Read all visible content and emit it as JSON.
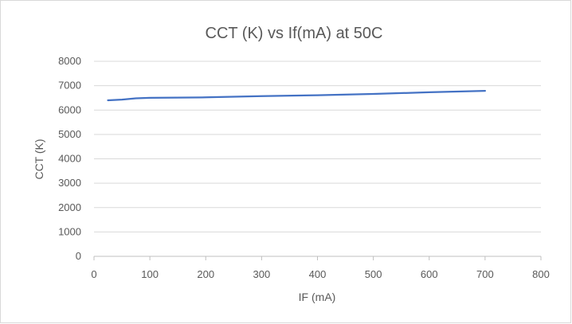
{
  "chart_data": {
    "type": "line",
    "title": "CCT (K) vs  If(mA) at 50C",
    "xlabel": "IF (mA)",
    "ylabel": "CCT (K)",
    "xlim": [
      0,
      800
    ],
    "ylim": [
      0,
      8000
    ],
    "xticks": [
      0,
      100,
      200,
      300,
      400,
      500,
      600,
      700,
      800
    ],
    "yticks": [
      0,
      1000,
      2000,
      3000,
      4000,
      5000,
      6000,
      7000,
      8000
    ],
    "grid": "horizontal",
    "legend": "none",
    "series": [
      {
        "color": "#4472c4",
        "x": [
          25,
          50,
          75,
          100,
          200,
          300,
          400,
          500,
          600,
          700
        ],
        "y": [
          6400,
          6430,
          6480,
          6500,
          6520,
          6570,
          6610,
          6660,
          6730,
          6790
        ]
      }
    ]
  }
}
